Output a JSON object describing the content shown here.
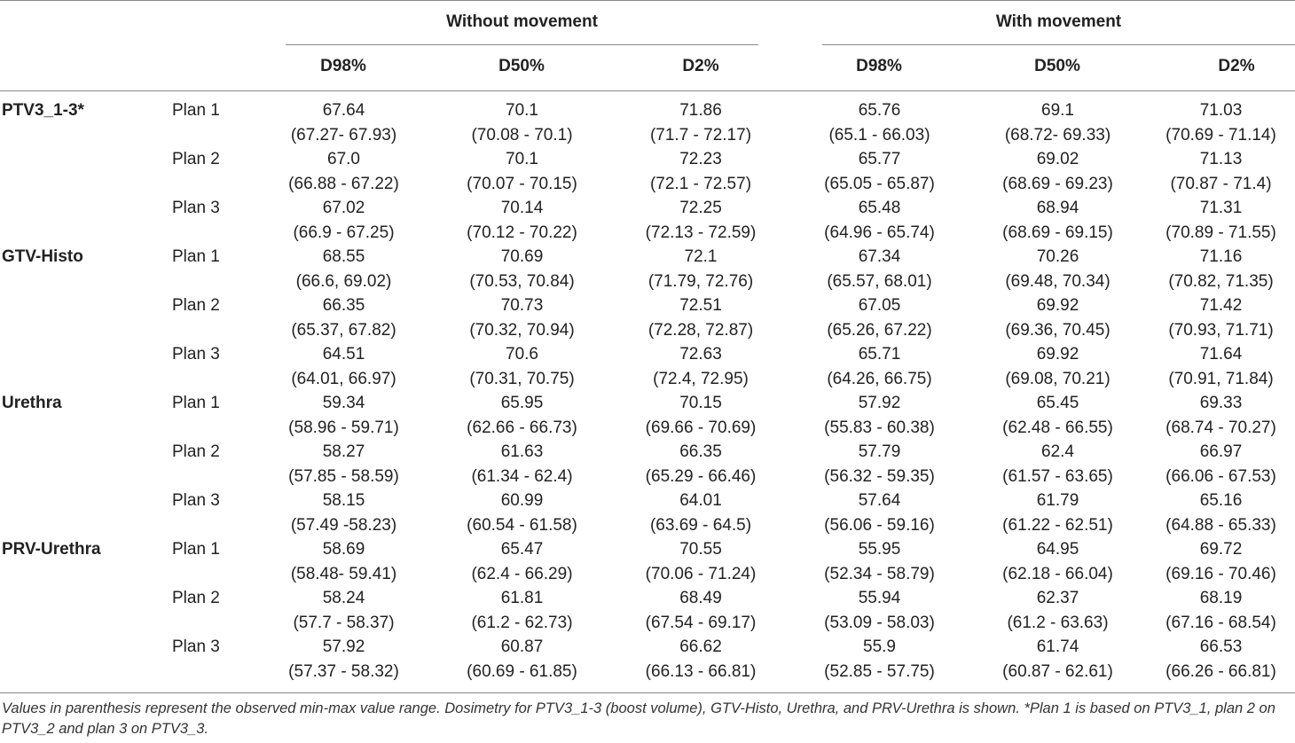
{
  "header": {
    "groups": [
      {
        "label": "Without movement",
        "columns": [
          "D98%",
          "D50%",
          "D2%"
        ]
      },
      {
        "label": "With movement",
        "columns": [
          "D98%",
          "D50%",
          "D2%"
        ]
      }
    ]
  },
  "rows": [
    {
      "structure": "PTV3_1-3*",
      "plan": "Plan 1",
      "cells": [
        {
          "value": "67.64",
          "range": "(67.27- 67.93)"
        },
        {
          "value": "70.1",
          "range": "(70.08 - 70.1)"
        },
        {
          "value": "71.86",
          "range": "(71.7 - 72.17)"
        },
        {
          "value": "65.76",
          "range": "(65.1 - 66.03)"
        },
        {
          "value": "69.1",
          "range": "(68.72- 69.33)"
        },
        {
          "value": "71.03",
          "range": "(70.69 - 71.14)"
        }
      ]
    },
    {
      "structure": "",
      "plan": "Plan 2",
      "cells": [
        {
          "value": "67.0",
          "range": "(66.88 - 67.22)"
        },
        {
          "value": "70.1",
          "range": "(70.07 - 70.15)"
        },
        {
          "value": "72.23",
          "range": "(72.1 - 72.57)"
        },
        {
          "value": "65.77",
          "range": "(65.05 - 65.87)"
        },
        {
          "value": "69.02",
          "range": "(68.69 - 69.23)"
        },
        {
          "value": "71.13",
          "range": "(70.87 - 71.4)"
        }
      ]
    },
    {
      "structure": "",
      "plan": "Plan 3",
      "cells": [
        {
          "value": "67.02",
          "range": "(66.9 - 67.25)"
        },
        {
          "value": "70.14",
          "range": "(70.12 - 70.22)"
        },
        {
          "value": "72.25",
          "range": "(72.13 - 72.59)"
        },
        {
          "value": "65.48",
          "range": "(64.96 - 65.74)"
        },
        {
          "value": "68.94",
          "range": "(68.69 - 69.15)"
        },
        {
          "value": "71.31",
          "range": "(70.89 - 71.55)"
        }
      ]
    },
    {
      "structure": "GTV-Histo",
      "plan": "Plan 1",
      "cells": [
        {
          "value": "68.55",
          "range": "(66.6, 69.02)"
        },
        {
          "value": "70.69",
          "range": "(70.53, 70.84)"
        },
        {
          "value": "72.1",
          "range": "(71.79, 72.76)"
        },
        {
          "value": "67.34",
          "range": "(65.57, 68.01)"
        },
        {
          "value": "70.26",
          "range": "(69.48, 70.34)"
        },
        {
          "value": "71.16",
          "range": "(70.82, 71.35)"
        }
      ]
    },
    {
      "structure": "",
      "plan": "Plan 2",
      "cells": [
        {
          "value": "66.35",
          "range": "(65.37, 67.82)"
        },
        {
          "value": "70.73",
          "range": "(70.32, 70.94)"
        },
        {
          "value": "72.51",
          "range": "(72.28, 72.87)"
        },
        {
          "value": "67.05",
          "range": "(65.26, 67.22)"
        },
        {
          "value": "69.92",
          "range": "(69.36, 70.45)"
        },
        {
          "value": "71.42",
          "range": "(70.93, 71.71)"
        }
      ]
    },
    {
      "structure": "",
      "plan": "Plan 3",
      "cells": [
        {
          "value": "64.51",
          "range": "(64.01, 66.97)"
        },
        {
          "value": "70.6",
          "range": "(70.31, 70.75)"
        },
        {
          "value": "72.63",
          "range": "(72.4, 72.95)"
        },
        {
          "value": "65.71",
          "range": "(64.26, 66.75)"
        },
        {
          "value": "69.92",
          "range": "(69.08, 70.21)"
        },
        {
          "value": "71.64",
          "range": "(70.91, 71.84)"
        }
      ]
    },
    {
      "structure": "Urethra",
      "plan": "Plan 1",
      "cells": [
        {
          "value": "59.34",
          "range": "(58.96 - 59.71)"
        },
        {
          "value": "65.95",
          "range": "(62.66 - 66.73)"
        },
        {
          "value": "70.15",
          "range": "(69.66 - 70.69)"
        },
        {
          "value": "57.92",
          "range": "(55.83 - 60.38)"
        },
        {
          "value": "65.45",
          "range": "(62.48 - 66.55)"
        },
        {
          "value": "69.33",
          "range": "(68.74 - 70.27)"
        }
      ]
    },
    {
      "structure": "",
      "plan": "Plan 2",
      "cells": [
        {
          "value": "58.27",
          "range": "(57.85 - 58.59)"
        },
        {
          "value": "61.63",
          "range": "(61.34 - 62.4)"
        },
        {
          "value": "66.35",
          "range": "(65.29 - 66.46)"
        },
        {
          "value": "57.79",
          "range": "(56.32 - 59.35)"
        },
        {
          "value": "62.4",
          "range": "(61.57 - 63.65)"
        },
        {
          "value": "66.97",
          "range": "(66.06 - 67.53)"
        }
      ]
    },
    {
      "structure": "",
      "plan": "Plan 3",
      "cells": [
        {
          "value": "58.15",
          "range": "(57.49 -58.23)"
        },
        {
          "value": "60.99",
          "range": "(60.54 - 61.58)"
        },
        {
          "value": "64.01",
          "range": "(63.69 - 64.5)"
        },
        {
          "value": "57.64",
          "range": "(56.06 - 59.16)"
        },
        {
          "value": "61.79",
          "range": "(61.22 - 62.51)"
        },
        {
          "value": "65.16",
          "range": "(64.88 - 65.33)"
        }
      ]
    },
    {
      "structure": "PRV-Urethra",
      "plan": "Plan 1",
      "cells": [
        {
          "value": "58.69",
          "range": "(58.48- 59.41)"
        },
        {
          "value": "65.47",
          "range": "(62.4 - 66.29)"
        },
        {
          "value": "70.55",
          "range": "(70.06 - 71.24)"
        },
        {
          "value": "55.95",
          "range": "(52.34 - 58.79)"
        },
        {
          "value": "64.95",
          "range": "(62.18 - 66.04)"
        },
        {
          "value": "69.72",
          "range": "(69.16 - 70.46)"
        }
      ]
    },
    {
      "structure": "",
      "plan": "Plan 2",
      "cells": [
        {
          "value": "58.24",
          "range": "(57.7 - 58.37)"
        },
        {
          "value": "61.81",
          "range": "(61.2 - 62.73)"
        },
        {
          "value": "68.49",
          "range": "(67.54 - 69.17)"
        },
        {
          "value": "55.94",
          "range": "(53.09 - 58.03)"
        },
        {
          "value": "62.37",
          "range": "(61.2 - 63.63)"
        },
        {
          "value": "68.19",
          "range": "(67.16 - 68.54)"
        }
      ]
    },
    {
      "structure": "",
      "plan": "Plan 3",
      "cells": [
        {
          "value": "57.92",
          "range": "(57.37 - 58.32)"
        },
        {
          "value": "60.87",
          "range": "(60.69 - 61.85)"
        },
        {
          "value": "66.62",
          "range": "(66.13 - 66.81)"
        },
        {
          "value": "55.9",
          "range": "(52.85 - 57.75)"
        },
        {
          "value": "61.74",
          "range": "(60.87 - 62.61)"
        },
        {
          "value": "66.53",
          "range": "(66.26 - 66.81)"
        }
      ]
    }
  ],
  "footnote": "Values in parenthesis represent the observed min-max value range. Dosimetry for PTV3_1-3 (boost volume), GTV-Histo, Urethra, and PRV-Urethra is shown. *Plan 1 is based on PTV3_1, plan 2 on PTV3_2 and plan 3 on PTV3_3."
}
